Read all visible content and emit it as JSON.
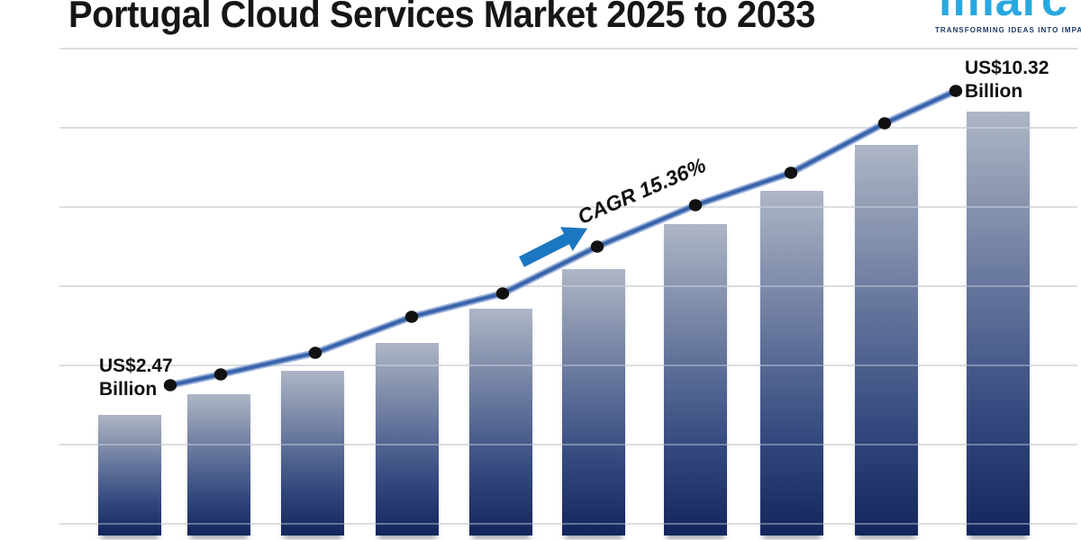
{
  "title": "Portugal Cloud Services Market 2025 to 2033",
  "logo": {
    "wordmark": "imarc",
    "tagline": "TRANSFORMING IDEAS INTO IMPACT"
  },
  "annotations": {
    "start_value_line1": "US$2.47",
    "start_value_line2": "Billion",
    "end_value_line1": "US$10.32",
    "end_value_line2": "Billion",
    "cagr_label": "CAGR 15.36%"
  },
  "chart_data": {
    "type": "bar",
    "title": "Portugal Cloud Services Market 2025 to 2033",
    "unit": "US$ Billion",
    "values": [
      2.47,
      3.0,
      3.61,
      4.33,
      5.22,
      6.24,
      7.41,
      8.27,
      9.46,
      10.32
    ],
    "first_point_label": "US$2.47 Billion",
    "last_point_label": "US$10.32 Billion",
    "cagr": "CAGR 15.36%",
    "trendline_with_dots": true,
    "x_axis_labels_visible": false,
    "ylim": [
      0,
      12
    ],
    "gridlines": "horizontal",
    "legend": "none"
  },
  "colors": {
    "title_text": "#161616",
    "logo_blue": "#29a8df",
    "logo_navy": "#1c3a60",
    "bar_gradient_top": "#aeb6c6",
    "bar_gradient_bottom": "#13265c",
    "trend_line": "#3a64ab",
    "trend_line_halo": "#8aa4d2",
    "data_dot": "#111111",
    "arrow": "#1c77c2",
    "gridline": "#d7d9dd",
    "annotation_text": "#111111"
  }
}
